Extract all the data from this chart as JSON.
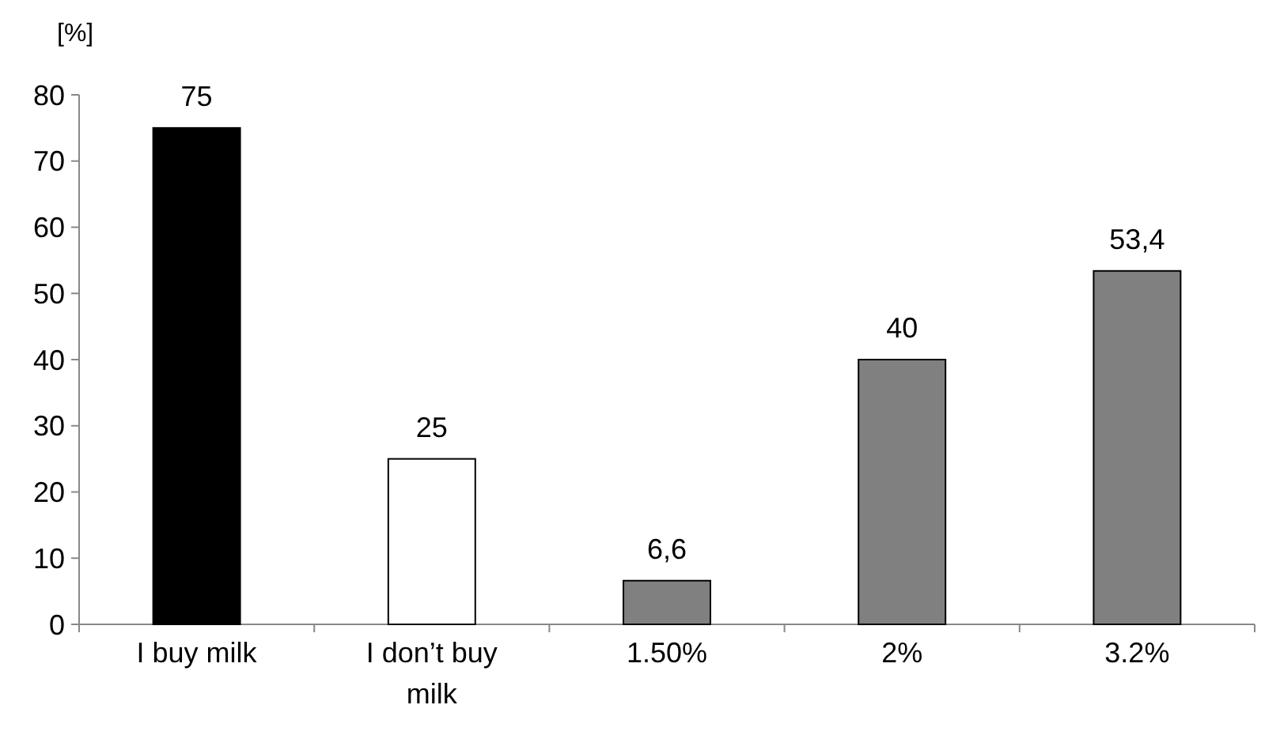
{
  "chart_data": {
    "type": "bar",
    "ylabel": "[%]",
    "categories": [
      "I buy milk",
      "I don’t buy milk",
      "1.50%",
      "2%",
      "3.2%"
    ],
    "values": [
      75,
      25,
      6.6,
      40,
      53.4
    ],
    "colors": [
      "#000000",
      "#ffffff",
      "#808080",
      "#808080",
      "#808080"
    ],
    "value_labels": [
      "75",
      "25",
      "6,6",
      "40",
      "53,4"
    ],
    "ylim": [
      0,
      80
    ],
    "yticks": [
      0,
      10,
      20,
      30,
      40,
      50,
      60,
      70,
      80
    ],
    "grid": false
  }
}
